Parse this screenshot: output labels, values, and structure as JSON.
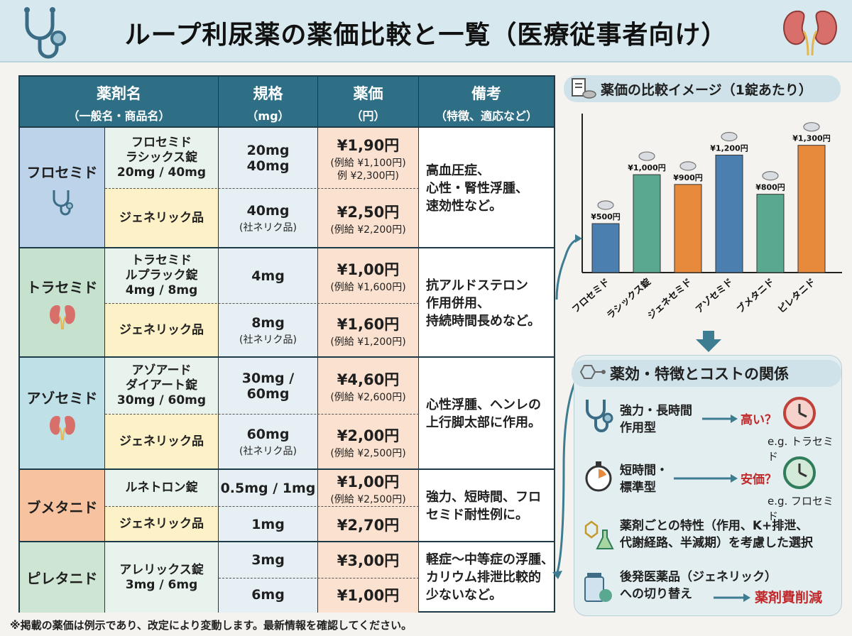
{
  "title": "ループ利尿薬の薬価比較と一覧（医療従事者向け）",
  "table": {
    "headers": [
      {
        "l1": "薬剤名",
        "l2": "（一般名・商品名）"
      },
      {
        "l1": "規格",
        "l2": "（mg）"
      },
      {
        "l1": "薬価",
        "l2": "（円）"
      },
      {
        "l1": "備考",
        "l2": "（特徴、適応など）"
      }
    ],
    "rows": [
      {
        "name": "フロセミド",
        "icon": "stethoscope-icon",
        "color": "#bcd3ea",
        "note": "高血圧症、\n心性・腎性浮腫、\n速効性など。",
        "items": [
          {
            "brand": "フロセミド\nラシックス錠\n20mg / 40mg",
            "spec": "20mg\n40mg",
            "spec_sub": "",
            "price": "¥1,90円",
            "price_sub": "(例給 ¥1,100円)\n例 ¥2,300円)"
          },
          {
            "brand": "ジェネリック品",
            "spec": "40mg",
            "spec_sub": "(社ネリク品)",
            "price": "¥2,50円",
            "price_sub": "(例給 ¥2,200円)"
          }
        ]
      },
      {
        "name": "トラセミド",
        "icon": "kidney-icon",
        "color": "#c6e2cf",
        "note": "抗アルドステロン\n作用併用、\n持続時間長めなど。",
        "items": [
          {
            "brand": "トラセミド\nルプラック錠\n4mg / 8mg",
            "spec": "4mg",
            "spec_sub": "",
            "price": "¥1,00円",
            "price_sub": "(例給 ¥1,600円)"
          },
          {
            "brand": "ジェネリック品",
            "spec": "8mg",
            "spec_sub": "(社ネリク品)",
            "price": "¥1,60円",
            "price_sub": "(例給 ¥1,200円)"
          }
        ]
      },
      {
        "name": "アゾセミド",
        "icon": "kidney-icon",
        "color": "#bfe0e6",
        "note": "心性浮腫、ヘンレの\n上行脚太部に作用。",
        "items": [
          {
            "brand": "アゾアード\nダイアート錠\n30mg / 60mg",
            "spec": "30mg / 60mg",
            "spec_sub": "",
            "price": "¥4,60円",
            "price_sub": "(例給 ¥2,600円)"
          },
          {
            "brand": "ジェネリック品",
            "spec": "60mg",
            "spec_sub": "(社ネリク品)",
            "price": "¥2,00円",
            "price_sub": "(例給 ¥2,500円)"
          }
        ]
      },
      {
        "name": "ブメタニド",
        "icon": "",
        "color": "#f6c29f",
        "note": "強力、短時間、フロ\nセミド耐性例に。",
        "items": [
          {
            "brand": "ルネトロン錠",
            "spec": "0.5mg / 1mg",
            "spec_sub": "",
            "price": "¥1,00円",
            "price_sub": "(例給 ¥2,500円)"
          },
          {
            "brand": "ジェネリック品",
            "spec": "1mg",
            "spec_sub": "",
            "price": "¥2,70円",
            "price_sub": ""
          }
        ]
      },
      {
        "name": "ピレタニド",
        "icon": "",
        "color": "#cfe5d3",
        "note": "軽症〜中等症の浮腫、\nカリウム排泄比較的\n少ないなど。",
        "items": [
          {
            "brand": "アレリックス錠\n3mg / 6mg",
            "spec": "3mg",
            "spec_sub": "",
            "price": "¥3,00円",
            "price_sub": ""
          },
          {
            "brand": "",
            "spec": "6mg",
            "spec_sub": "",
            "price": "¥1,00円",
            "price_sub": ""
          }
        ]
      }
    ]
  },
  "footnote": "※掲載の薬価は例示であり、改定により変動します。最新情報を確認してください。",
  "chart_header": "薬価の比較イメージ（1錠あたり）",
  "chart_data": {
    "type": "bar",
    "title": "薬価の比較イメージ（1錠あたり）",
    "categories": [
      "フロセミド",
      "ラシックス錠",
      "ジェネセミド",
      "アゾセミド",
      "ブメタニド",
      "ピレタニド"
    ],
    "values": [
      500,
      1000,
      900,
      1200,
      800,
      1300
    ],
    "labels": [
      "¥500円",
      "¥1,000円",
      "¥900円",
      "¥1,200円",
      "¥800円",
      "¥1,300円"
    ],
    "colors": [
      "#4a7fb0",
      "#5aa88f",
      "#e88a3c",
      "#4a7fb0",
      "#5aa88f",
      "#e88a3c"
    ],
    "ylim": [
      0,
      1450
    ],
    "grid": false
  },
  "relation": {
    "header": "薬効・特徴とコストの関係",
    "item1": {
      "text": "強力・長時間\n作用型",
      "tag": "高い？",
      "eg": "e.g. トラセミド"
    },
    "item2": {
      "text": "短時間・\n標準型",
      "tag": "安価？",
      "eg": "e.g. フロセミド"
    },
    "item3": "薬剤ごとの特性（作用、K+排泄、\n代謝経路、半減期）を考慮した選択",
    "item4": {
      "text": "後発医薬品（ジェネリック）\nへの切り替え",
      "tag": "薬剤費削減"
    }
  },
  "colors": {
    "header_bg": "#d7e9ee",
    "table_header": "#2f6f85",
    "price_bg": "#fbe1cf",
    "spec_bg": "#e6f0f4",
    "generic_bg": "#fdf1c7",
    "brand_bg": "#e9f3ee",
    "red": "#c0282a"
  }
}
